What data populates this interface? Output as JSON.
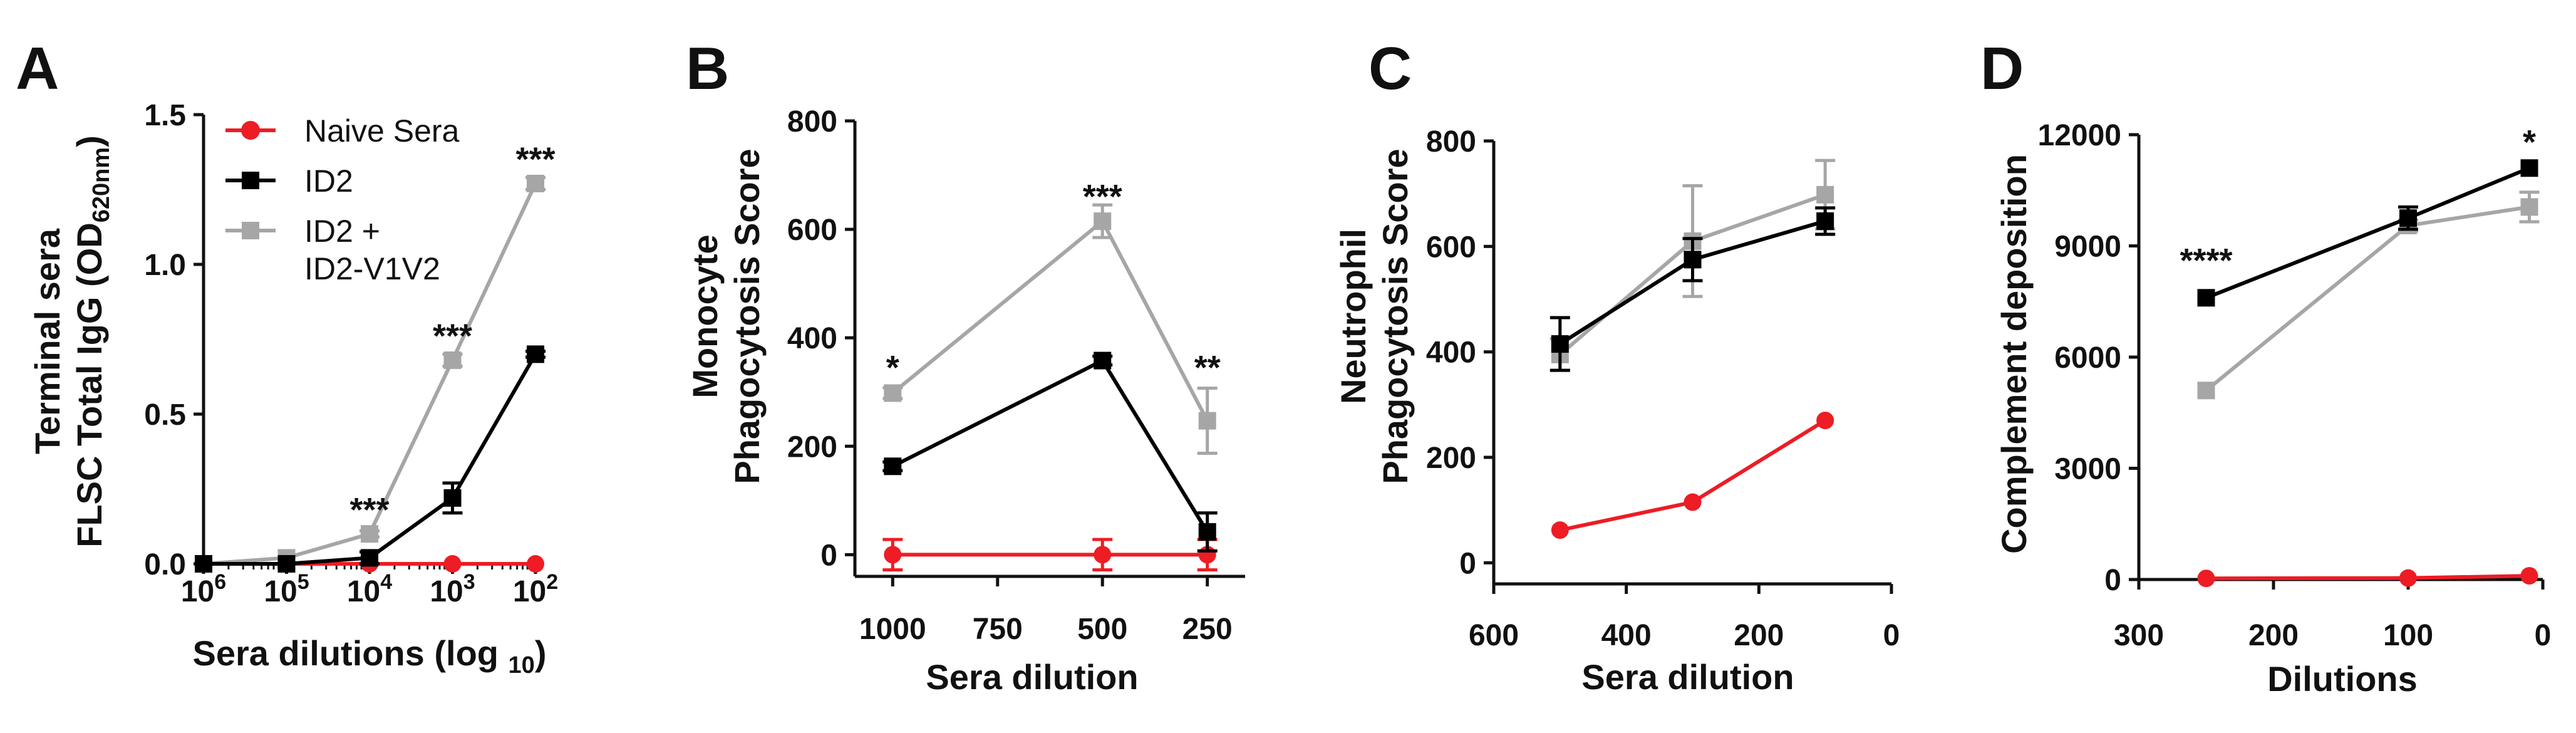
{
  "colors": {
    "naive": "#ee1c24",
    "id2": "#000000",
    "combo": "#a6a6a6",
    "axis": "#111111"
  },
  "legend": {
    "entries": [
      {
        "series": "naive",
        "label": "Naive Sera"
      },
      {
        "series": "id2",
        "label": "ID2"
      },
      {
        "series": "combo",
        "label": "ID2 +"
      }
    ],
    "combo_label_line2": "ID2-V1V2"
  },
  "chart_data": [
    {
      "id": "A",
      "type": "line",
      "panel_label": "A",
      "xlabel_main": "Sera dilutions (log ",
      "xlabel_sub": "10",
      "xlabel_end": ")",
      "ylabel_line1": "Terminal sera",
      "ylabel_line2_main": "FLSC Total IgG (OD",
      "ylabel_line2_sub": "620nm",
      "ylabel_line2_end": ")",
      "xscale": "log10",
      "xlim": [
        6,
        2
      ],
      "xticks": [
        {
          "value": 6,
          "base": "10",
          "exp": "6"
        },
        {
          "value": 5,
          "base": "10",
          "exp": "5"
        },
        {
          "value": 4,
          "base": "10",
          "exp": "4"
        },
        {
          "value": 3,
          "base": "10",
          "exp": "3"
        },
        {
          "value": 2,
          "base": "10",
          "exp": "2"
        }
      ],
      "ylim": [
        0,
        1.5
      ],
      "yticks": [
        {
          "value": 0,
          "label": "0.0"
        },
        {
          "value": 0.5,
          "label": "0.5"
        },
        {
          "value": 1.0,
          "label": "1.0"
        },
        {
          "value": 1.5,
          "label": "1.5"
        }
      ],
      "x": [
        6,
        5,
        4,
        3,
        2
      ],
      "series": [
        {
          "key": "naive",
          "name": "Naive Sera",
          "marker": "circle",
          "values": [
            0,
            0,
            0,
            0,
            0
          ],
          "errors": [
            0,
            0,
            0,
            0,
            0
          ]
        },
        {
          "key": "combo",
          "name": "ID2 + ID2-V1V2",
          "marker": "square",
          "values": [
            0,
            0.02,
            0.1,
            0.68,
            1.27
          ],
          "errors": [
            0,
            0,
            0.01,
            0.02,
            0.02
          ]
        },
        {
          "key": "id2",
          "name": "ID2",
          "marker": "square",
          "values": [
            0,
            0,
            0.02,
            0.22,
            0.7
          ],
          "errors": [
            0,
            0,
            0.02,
            0.05,
            0.01
          ]
        }
      ],
      "annotations": [
        {
          "x": 4,
          "y": 0.18,
          "text": "***"
        },
        {
          "x": 3,
          "y": 0.76,
          "text": "***"
        },
        {
          "x": 2,
          "y": 1.35,
          "text": "***"
        }
      ]
    },
    {
      "id": "B",
      "type": "line",
      "panel_label": "B",
      "xlabel": "Sera dilution",
      "ylabel_line1": "Monocyte",
      "ylabel_line2": "Phagocytosis Score",
      "xlim": [
        1090,
        160
      ],
      "xticks": [
        {
          "value": 1000,
          "label": "1000"
        },
        {
          "value": 750,
          "label": "750"
        },
        {
          "value": 500,
          "label": "500"
        },
        {
          "value": 250,
          "label": "250"
        }
      ],
      "ylim": [
        -40,
        800
      ],
      "yticks": [
        {
          "value": 0,
          "label": "0"
        },
        {
          "value": 200,
          "label": "200"
        },
        {
          "value": 400,
          "label": "400"
        },
        {
          "value": 600,
          "label": "600"
        },
        {
          "value": 800,
          "label": "800"
        }
      ],
      "x": [
        1000,
        500,
        250
      ],
      "series": [
        {
          "key": "naive",
          "name": "Naive Sera",
          "marker": "circle",
          "values": [
            0,
            0,
            0
          ],
          "errors": [
            28,
            28,
            28
          ]
        },
        {
          "key": "combo",
          "name": "ID2 + ID2-V1V2",
          "marker": "square",
          "values": [
            298,
            615,
            247
          ],
          "errors": [
            10,
            30,
            60
          ]
        },
        {
          "key": "id2",
          "name": "ID2",
          "marker": "square",
          "values": [
            163,
            358,
            42
          ],
          "errors": [
            8,
            8,
            35
          ]
        }
      ],
      "annotations": [
        {
          "x": 1000,
          "y": 345,
          "text": "*"
        },
        {
          "x": 500,
          "y": 660,
          "text": "***"
        },
        {
          "x": 250,
          "y": 345,
          "text": "**"
        }
      ]
    },
    {
      "id": "C",
      "type": "line",
      "panel_label": "C",
      "xlabel": "Sera dilution",
      "ylabel_line1": "Neutrophil",
      "ylabel_line2": "Phagocytosis Score",
      "xlim": [
        600,
        0
      ],
      "xticks": [
        {
          "value": 600,
          "label": "600"
        },
        {
          "value": 400,
          "label": "400"
        },
        {
          "value": 200,
          "label": "200"
        },
        {
          "value": 0,
          "label": "0"
        }
      ],
      "ylim": [
        -40,
        800
      ],
      "yticks": [
        {
          "value": 0,
          "label": "0"
        },
        {
          "value": 200,
          "label": "200"
        },
        {
          "value": 400,
          "label": "400"
        },
        {
          "value": 600,
          "label": "600"
        },
        {
          "value": 800,
          "label": "800"
        }
      ],
      "x": [
        500,
        300,
        100
      ],
      "series": [
        {
          "key": "naive",
          "name": "Naive Sera",
          "marker": "circle",
          "values": [
            62,
            115,
            270
          ],
          "errors": [
            0,
            0,
            0
          ]
        },
        {
          "key": "combo",
          "name": "ID2 + ID2-V1V2",
          "marker": "square",
          "values": [
            395,
            610,
            698
          ],
          "errors": [
            30,
            105,
            65
          ]
        },
        {
          "key": "id2",
          "name": "ID2",
          "marker": "square",
          "values": [
            415,
            575,
            648
          ],
          "errors": [
            50,
            40,
            25
          ]
        }
      ],
      "annotations": []
    },
    {
      "id": "D",
      "type": "line",
      "panel_label": "D",
      "xlabel": "Dilutions",
      "ylabel": "Complement deposition",
      "xlim": [
        300,
        0
      ],
      "xticks": [
        {
          "value": 300,
          "label": "300"
        },
        {
          "value": 200,
          "label": "200"
        },
        {
          "value": 100,
          "label": "100"
        },
        {
          "value": 0,
          "label": "0"
        }
      ],
      "ylim": [
        0,
        12000
      ],
      "yticks": [
        {
          "value": 0,
          "label": "0"
        },
        {
          "value": 3000,
          "label": "3000"
        },
        {
          "value": 6000,
          "label": "6000"
        },
        {
          "value": 9000,
          "label": "9000"
        },
        {
          "value": 12000,
          "label": "12000"
        }
      ],
      "x": [
        250,
        100,
        10
      ],
      "series": [
        {
          "key": "naive",
          "name": "Naive Sera",
          "marker": "circle",
          "values": [
            30,
            40,
            100
          ],
          "errors": [
            0,
            0,
            0
          ]
        },
        {
          "key": "combo",
          "name": "ID2 + ID2-V1V2",
          "marker": "square",
          "values": [
            5100,
            9550,
            10050
          ],
          "errors": [
            0,
            150,
            400
          ]
        },
        {
          "key": "id2",
          "name": "ID2",
          "marker": "square",
          "values": [
            7600,
            9750,
            11100
          ],
          "errors": [
            0,
            300,
            0
          ]
        }
      ],
      "annotations": [
        {
          "x": 250,
          "y": 8600,
          "text": "****"
        },
        {
          "x": 10,
          "y": 11800,
          "text": "*"
        }
      ]
    }
  ]
}
